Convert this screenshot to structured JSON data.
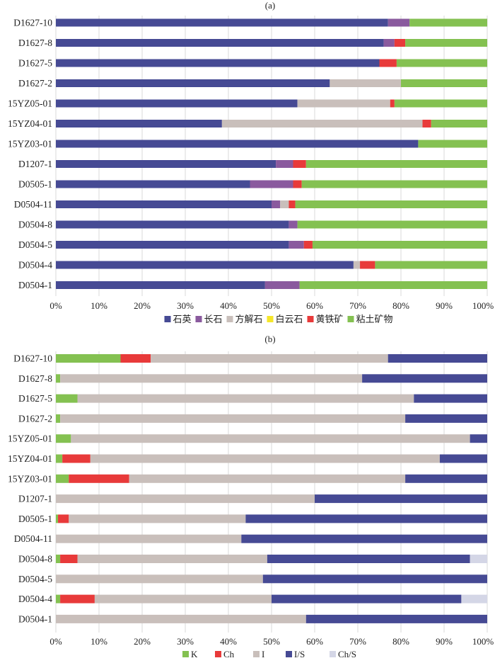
{
  "chart_data": [
    {
      "type": "bar",
      "orientation": "horizontal",
      "stacked": true,
      "title": "(a)",
      "categories": [
        "D1627-10",
        "D1627-8",
        "D1627-5",
        "D1627-2",
        "15YZ05-01",
        "15YZ04-01",
        "15YZ03-01",
        "D1207-1",
        "D0505-1",
        "D0504-11",
        "D0504-8",
        "D0504-5",
        "D0504-4",
        "D0504-1"
      ],
      "xlim": [
        0,
        100
      ],
      "x_ticks": [
        "0%",
        "10%",
        "20%",
        "30%",
        "40%",
        "50%",
        "60%",
        "70%",
        "80%",
        "90%",
        "100%"
      ],
      "grid": "vertical",
      "legend_position": "bottom",
      "series": [
        {
          "name": "石英",
          "color": "#464a94",
          "values": [
            77,
            76,
            75,
            63.5,
            56,
            38.5,
            84,
            51,
            45,
            50,
            54,
            54,
            69,
            48.5
          ]
        },
        {
          "name": "长石",
          "color": "#8a5a9e",
          "values": [
            5,
            2.5,
            0,
            0,
            0,
            0,
            0,
            4,
            10,
            2,
            2,
            3.5,
            0,
            8
          ]
        },
        {
          "name": "方解石",
          "color": "#c9bfbb",
          "values": [
            0,
            0,
            0,
            16.5,
            21.5,
            46.5,
            0,
            0,
            0,
            2,
            0,
            0,
            1.5,
            0
          ]
        },
        {
          "name": "白云石",
          "color": "#f5e629",
          "values": [
            0,
            0,
            0,
            0,
            0,
            0,
            0,
            0,
            0,
            0,
            0,
            0,
            0,
            0
          ]
        },
        {
          "name": "黄铁矿",
          "color": "#e83a3a",
          "values": [
            0,
            2.5,
            4,
            0,
            1,
            2,
            0,
            3,
            2,
            1.5,
            0,
            2,
            3.5,
            0
          ]
        },
        {
          "name": "粘土矿物",
          "color": "#84c151",
          "values": [
            18,
            19,
            21,
            20,
            21.5,
            13,
            16,
            42,
            43,
            44.5,
            44,
            40.5,
            26,
            43.5
          ]
        }
      ]
    },
    {
      "type": "bar",
      "orientation": "horizontal",
      "stacked": true,
      "title": "(b)",
      "categories": [
        "D1627-10",
        "D1627-8",
        "D1627-5",
        "D1627-2",
        "15YZ05-01",
        "15YZ04-01",
        "15YZ03-01",
        "D1207-1",
        "D0505-1",
        "D0504-11",
        "D0504-8",
        "D0504-5",
        "D0504-4",
        "D0504-1"
      ],
      "xlim": [
        0,
        100
      ],
      "x_ticks": [
        "0%",
        "10%",
        "20%",
        "30%",
        "40%",
        "50%",
        "60%",
        "70%",
        "80%",
        "90%",
        "100%"
      ],
      "grid": "vertical",
      "legend_position": "bottom",
      "series": [
        {
          "name": "K",
          "color": "#84c151",
          "values": [
            15,
            1,
            5,
            1,
            3.5,
            1.5,
            3,
            0,
            0.5,
            0,
            1,
            0,
            1,
            0
          ]
        },
        {
          "name": "Ch",
          "color": "#e83a3a",
          "values": [
            7,
            0,
            0,
            0,
            0,
            6.5,
            14,
            0,
            2.5,
            0,
            4,
            0,
            8,
            0
          ]
        },
        {
          "name": "I",
          "color": "#c9bfbb",
          "values": [
            55,
            70,
            78,
            80,
            92.5,
            81,
            64,
            60,
            41,
            43,
            44,
            48,
            41,
            58
          ]
        },
        {
          "name": "I/S",
          "color": "#464a94",
          "values": [
            23,
            29,
            17,
            19,
            4,
            11,
            19,
            40,
            56,
            57,
            47,
            52,
            44,
            42
          ]
        },
        {
          "name": "Ch/S",
          "color": "#d4d6e6",
          "values": [
            0,
            0,
            0,
            0,
            0,
            0,
            0,
            0,
            0,
            0,
            4,
            0,
            6,
            0
          ]
        }
      ]
    }
  ]
}
